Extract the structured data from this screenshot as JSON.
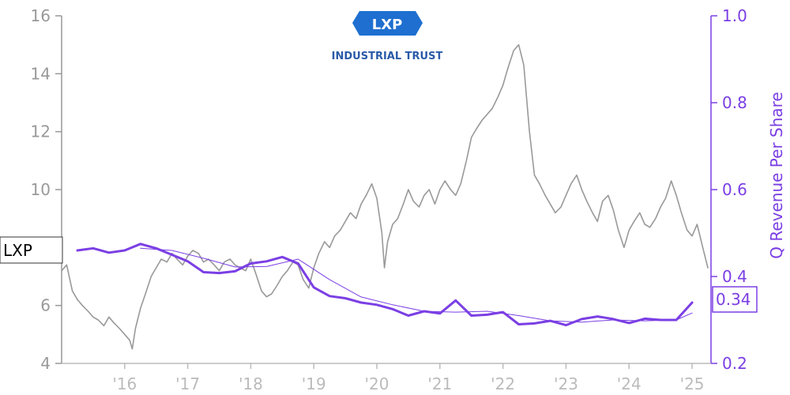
{
  "logo": {
    "mark": "LXP",
    "tagline": "INDUSTRIAL TRUST",
    "color_primary": "#1e6fd0",
    "color_tagline": "#2a5aa8"
  },
  "colors": {
    "price": "#999999",
    "revenue": "#7b3fe4",
    "axis_left": "#999999",
    "axis_right": "#7b3fe4",
    "axis_x": "#bbbbbb"
  },
  "chart_data": {
    "type": "line",
    "title": "",
    "xlabel": "",
    "ylabel": "",
    "ylabel_right": "Q Revenue Per Share",
    "xlim": [
      2015.0,
      2025.3
    ],
    "ylim": [
      4,
      16
    ],
    "ylim_right": [
      0.2,
      1.0
    ],
    "x_ticks": [
      {
        "x": 2016,
        "label": "'16"
      },
      {
        "x": 2017,
        "label": "'17"
      },
      {
        "x": 2018,
        "label": "'18"
      },
      {
        "x": 2019,
        "label": "'19"
      },
      {
        "x": 2020,
        "label": "'20"
      },
      {
        "x": 2021,
        "label": "'21"
      },
      {
        "x": 2022,
        "label": "'22"
      },
      {
        "x": 2023,
        "label": "'23"
      },
      {
        "x": 2024,
        "label": "'24"
      },
      {
        "x": 2025,
        "label": "'25"
      }
    ],
    "y_ticks_left": [
      4,
      6,
      8,
      10,
      12,
      14,
      16
    ],
    "y_ticks_right": [
      "0.2",
      "0.4",
      "0.6",
      "0.8",
      "1.0"
    ],
    "grid": false,
    "series": [
      {
        "name": "LXP",
        "axis": "left",
        "color": "#999999",
        "x": [
          2015.0,
          2015.08,
          2015.17,
          2015.25,
          2015.33,
          2015.42,
          2015.5,
          2015.58,
          2015.67,
          2015.75,
          2015.83,
          2015.92,
          2016.0,
          2016.08,
          2016.12,
          2016.17,
          2016.25,
          2016.33,
          2016.42,
          2016.5,
          2016.58,
          2016.67,
          2016.75,
          2016.83,
          2016.92,
          2017.0,
          2017.08,
          2017.17,
          2017.25,
          2017.33,
          2017.42,
          2017.5,
          2017.58,
          2017.67,
          2017.75,
          2017.83,
          2017.92,
          2018.0,
          2018.08,
          2018.17,
          2018.25,
          2018.33,
          2018.42,
          2018.5,
          2018.58,
          2018.67,
          2018.75,
          2018.83,
          2018.92,
          2019.0,
          2019.08,
          2019.17,
          2019.25,
          2019.33,
          2019.42,
          2019.5,
          2019.58,
          2019.67,
          2019.75,
          2019.83,
          2019.92,
          2020.0,
          2020.08,
          2020.12,
          2020.17,
          2020.25,
          2020.33,
          2020.42,
          2020.5,
          2020.58,
          2020.67,
          2020.75,
          2020.83,
          2020.92,
          2021.0,
          2021.08,
          2021.17,
          2021.25,
          2021.33,
          2021.42,
          2021.5,
          2021.58,
          2021.67,
          2021.75,
          2021.83,
          2021.92,
          2022.0,
          2022.08,
          2022.17,
          2022.25,
          2022.33,
          2022.42,
          2022.5,
          2022.58,
          2022.67,
          2022.75,
          2022.83,
          2022.92,
          2023.0,
          2023.08,
          2023.17,
          2023.25,
          2023.33,
          2023.42,
          2023.5,
          2023.58,
          2023.67,
          2023.75,
          2023.83,
          2023.92,
          2024.0,
          2024.08,
          2024.17,
          2024.25,
          2024.33,
          2024.42,
          2024.5,
          2024.58,
          2024.67,
          2024.75,
          2024.83,
          2024.92,
          2025.0,
          2025.08,
          2025.17,
          2025.25
        ],
        "values": [
          7.2,
          7.4,
          6.5,
          6.2,
          6.0,
          5.8,
          5.6,
          5.5,
          5.3,
          5.6,
          5.4,
          5.2,
          5.0,
          4.8,
          4.5,
          5.2,
          5.9,
          6.4,
          7.0,
          7.3,
          7.6,
          7.5,
          7.8,
          7.6,
          7.4,
          7.7,
          7.9,
          7.8,
          7.5,
          7.6,
          7.4,
          7.2,
          7.5,
          7.6,
          7.4,
          7.3,
          7.2,
          7.6,
          7.1,
          6.5,
          6.3,
          6.4,
          6.7,
          7.0,
          7.2,
          7.5,
          7.4,
          6.9,
          6.6,
          7.3,
          7.8,
          8.2,
          8.0,
          8.4,
          8.6,
          8.9,
          9.2,
          9.0,
          9.5,
          9.8,
          10.2,
          9.7,
          8.5,
          7.3,
          8.2,
          8.8,
          9.0,
          9.5,
          10.0,
          9.6,
          9.4,
          9.8,
          10.0,
          9.5,
          10.0,
          10.3,
          10.0,
          9.8,
          10.2,
          11.0,
          11.8,
          12.1,
          12.4,
          12.6,
          12.8,
          13.2,
          13.6,
          14.2,
          14.8,
          15.0,
          14.3,
          12.0,
          10.5,
          10.2,
          9.8,
          9.5,
          9.2,
          9.4,
          9.8,
          10.2,
          10.5,
          10.0,
          9.6,
          9.2,
          8.9,
          9.6,
          9.8,
          9.3,
          8.6,
          8.0,
          8.6,
          8.9,
          9.2,
          8.8,
          8.7,
          9.0,
          9.4,
          9.7,
          10.3,
          9.8,
          9.2,
          8.6,
          8.4,
          8.8,
          8.0,
          7.3
        ]
      },
      {
        "name": "Q Revenue Per Share",
        "axis": "right",
        "color": "#7b3fe4",
        "x": [
          2015.25,
          2015.5,
          2015.75,
          2016.0,
          2016.25,
          2016.5,
          2016.75,
          2017.0,
          2017.25,
          2017.5,
          2017.75,
          2018.0,
          2018.25,
          2018.5,
          2018.75,
          2019.0,
          2019.25,
          2019.5,
          2019.75,
          2020.0,
          2020.25,
          2020.5,
          2020.75,
          2021.0,
          2021.25,
          2021.5,
          2021.75,
          2022.0,
          2022.25,
          2022.5,
          2022.75,
          2023.0,
          2023.25,
          2023.5,
          2023.75,
          2024.0,
          2024.25,
          2024.5,
          2024.75,
          2025.0
        ],
        "values": [
          0.46,
          0.465,
          0.455,
          0.46,
          0.475,
          0.465,
          0.45,
          0.435,
          0.41,
          0.408,
          0.412,
          0.43,
          0.435,
          0.445,
          0.43,
          0.375,
          0.355,
          0.35,
          0.34,
          0.335,
          0.325,
          0.31,
          0.32,
          0.315,
          0.345,
          0.31,
          0.312,
          0.318,
          0.29,
          0.292,
          0.298,
          0.288,
          0.302,
          0.308,
          0.302,
          0.293,
          0.303,
          0.3,
          0.3,
          0.34
        ]
      },
      {
        "name": "",
        "axis": "right",
        "color": "#7b3fe4",
        "x": [
          2016.25,
          2016.75,
          2017.25,
          2017.75,
          2018.25,
          2018.75,
          2019.25,
          2019.75,
          2020.25,
          2020.75,
          2021.25,
          2021.75,
          2022.25,
          2022.75,
          2023.25,
          2023.75,
          2024.25,
          2024.75,
          2025.0
        ],
        "values": [
          0.465,
          0.46,
          0.442,
          0.422,
          0.423,
          0.44,
          0.393,
          0.353,
          0.335,
          0.32,
          0.318,
          0.32,
          0.31,
          0.298,
          0.295,
          0.3,
          0.298,
          0.3,
          0.316
        ]
      }
    ],
    "badges": {
      "left_label": "LXP",
      "left_value_at": 7.9,
      "right_label": "0.34",
      "right_value_at": 0.34
    }
  }
}
